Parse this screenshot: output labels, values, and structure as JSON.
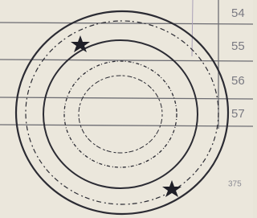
{
  "rows": [
    {
      "number": "54"
    },
    {
      "number": "55"
    },
    {
      "number": "56"
    },
    {
      "number": "57"
    }
  ],
  "footer": {
    "page_number": "375"
  }
}
